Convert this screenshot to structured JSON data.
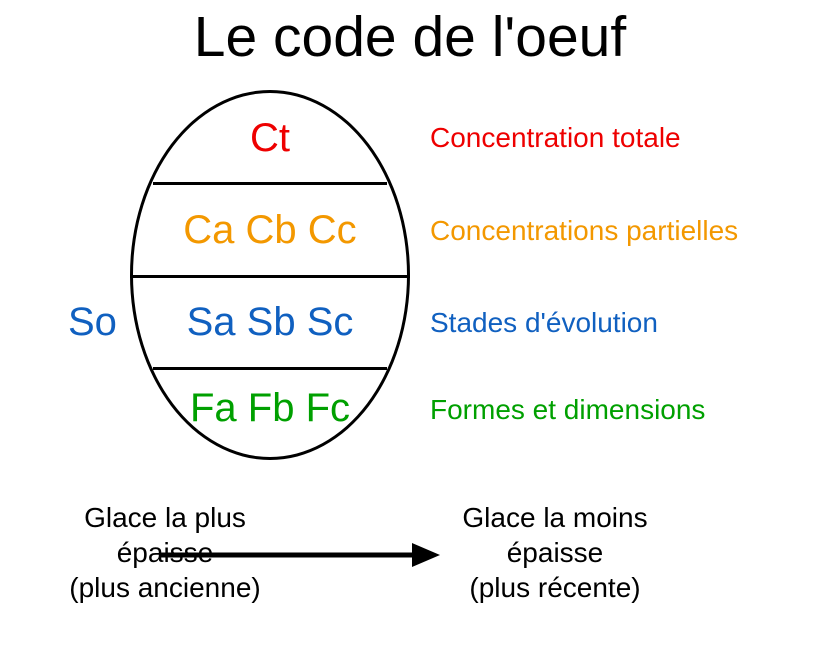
{
  "title": "Le code de l'oeuf",
  "egg": {
    "rows": [
      {
        "codes": "Ct",
        "color": "#ee0000",
        "legend": "Concentration totale"
      },
      {
        "codes": "Ca Cb Cc",
        "color": "#f39800",
        "legend": "Concentrations partielles"
      },
      {
        "codes": "Sa Sb Sc",
        "color": "#1060c0",
        "legend": "Stades d'évolution"
      },
      {
        "codes": "Fa Fb Fc",
        "color": "#00a000",
        "legend": "Formes et dimensions"
      }
    ],
    "outer_code": "So",
    "outer_code_color": "#1060c0",
    "border_color": "#000000",
    "background": "#ffffff"
  },
  "bottom": {
    "left_lines": [
      "Glace la plus",
      "épaisse",
      "(plus ancienne)"
    ],
    "right_lines": [
      "Glace la moins",
      "épaisse",
      "(plus récente)"
    ]
  },
  "arrow": {
    "color": "#000000"
  }
}
